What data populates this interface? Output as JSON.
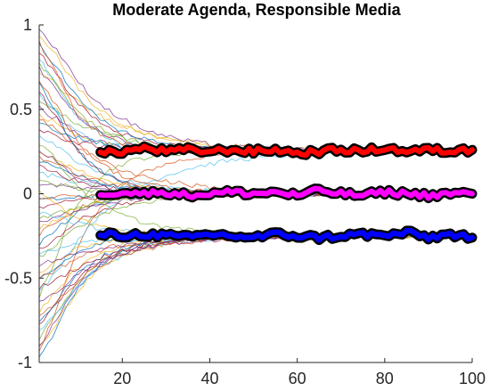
{
  "chart_data": {
    "type": "line",
    "title": "Moderate Agenda, Responsible Media",
    "xlabel": "",
    "ylabel": "",
    "xlim": [
      1,
      100
    ],
    "ylim": [
      -1,
      1
    ],
    "xticks": [
      "20",
      "40",
      "60",
      "80",
      "100"
    ],
    "yticks": [
      "1",
      "0.5",
      "0",
      "-0.5",
      "-1"
    ],
    "xtick_values": [
      20,
      40,
      60,
      80,
      100
    ],
    "ytick_values": [
      1,
      0.5,
      0,
      -0.5,
      -1
    ],
    "grid": false,
    "background_trajectories": {
      "description_count": 60,
      "x_start": 1,
      "x_end": 100,
      "start_range": [
        -1,
        1
      ],
      "converge_to": [
        0.25,
        0,
        -0.25
      ],
      "colors": [
        "#0072BD",
        "#D95319",
        "#EDB120",
        "#7E2F8E",
        "#77AC30",
        "#4DBEEE",
        "#A2142F"
      ]
    },
    "series": [
      {
        "color": "#FF0000",
        "outline": "#000000",
        "x": [
          15,
          20,
          25,
          30,
          35,
          40,
          45,
          50,
          55,
          60,
          65,
          70,
          75,
          80,
          85,
          90,
          95,
          100
        ],
        "values": [
          0.24,
          0.25,
          0.27,
          0.25,
          0.26,
          0.25,
          0.26,
          0.25,
          0.26,
          0.24,
          0.25,
          0.26,
          0.25,
          0.27,
          0.25,
          0.26,
          0.25,
          0.26
        ]
      },
      {
        "color": "#FF00FF",
        "outline": "#000000",
        "x": [
          15,
          20,
          25,
          30,
          35,
          40,
          45,
          50,
          55,
          60,
          65,
          70,
          75,
          80,
          85,
          90,
          95,
          100
        ],
        "values": [
          0.0,
          0.01,
          0.0,
          0.01,
          -0.01,
          0.0,
          0.01,
          0.0,
          0.01,
          -0.01,
          0.02,
          0.0,
          -0.01,
          0.01,
          0.0,
          -0.01,
          0.0,
          0.0
        ]
      },
      {
        "color": "#0000FF",
        "outline": "#000000",
        "x": [
          15,
          20,
          25,
          30,
          35,
          40,
          45,
          50,
          55,
          60,
          65,
          70,
          75,
          80,
          85,
          90,
          95,
          100
        ],
        "values": [
          -0.24,
          -0.25,
          -0.24,
          -0.25,
          -0.26,
          -0.24,
          -0.25,
          -0.26,
          -0.24,
          -0.25,
          -0.26,
          -0.25,
          -0.24,
          -0.25,
          -0.23,
          -0.26,
          -0.24,
          -0.26
        ]
      }
    ]
  }
}
